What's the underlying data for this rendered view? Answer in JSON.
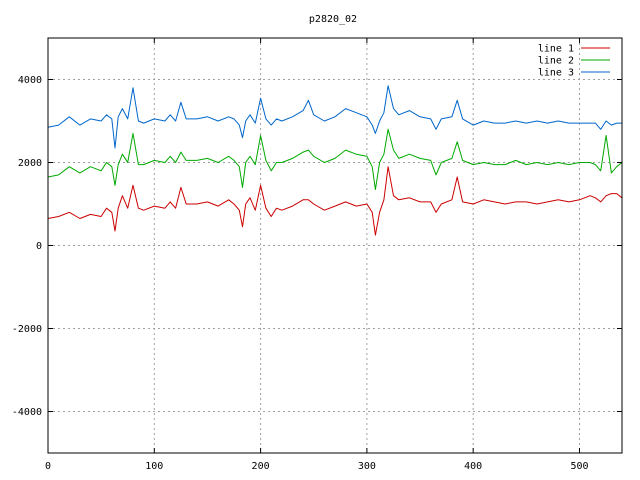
{
  "chart_data": {
    "type": "line",
    "title": "p2820_02",
    "xlabel": "",
    "ylabel": "",
    "xlim": [
      0,
      540
    ],
    "ylim": [
      -5000,
      5000
    ],
    "x_ticks": [
      0,
      100,
      200,
      300,
      400,
      500
    ],
    "y_ticks": [
      -4000,
      -2000,
      0,
      2000,
      4000
    ],
    "grid": true,
    "legend_position": "top-right",
    "series": [
      {
        "name": "line 1",
        "color": "#cc0000",
        "x": [
          0,
          10,
          20,
          30,
          40,
          50,
          55,
          60,
          63,
          66,
          70,
          75,
          80,
          85,
          90,
          100,
          110,
          115,
          120,
          125,
          130,
          140,
          150,
          160,
          170,
          175,
          180,
          183,
          186,
          190,
          195,
          200,
          205,
          210,
          215,
          220,
          230,
          240,
          245,
          250,
          260,
          270,
          280,
          290,
          300,
          305,
          308,
          312,
          316,
          320,
          325,
          330,
          340,
          350,
          360,
          365,
          370,
          380,
          385,
          390,
          400,
          410,
          420,
          430,
          440,
          450,
          460,
          470,
          480,
          490,
          500,
          510,
          515,
          520,
          525,
          530,
          535,
          540
        ],
        "values": [
          650,
          700,
          800,
          650,
          750,
          700,
          900,
          800,
          350,
          900,
          1200,
          900,
          1450,
          900,
          850,
          950,
          900,
          1050,
          900,
          1400,
          1000,
          1000,
          1050,
          950,
          1100,
          1000,
          850,
          450,
          1000,
          1150,
          850,
          1450,
          900,
          700,
          900,
          850,
          950,
          1100,
          1100,
          1000,
          850,
          950,
          1050,
          950,
          1000,
          800,
          250,
          800,
          1100,
          1900,
          1200,
          1100,
          1150,
          1050,
          1050,
          800,
          1000,
          1100,
          1650,
          1050,
          1000,
          1100,
          1050,
          1000,
          1050,
          1050,
          1000,
          1050,
          1100,
          1050,
          1100,
          1200,
          1150,
          1050,
          1200,
          1250,
          1250,
          1150
        ]
      },
      {
        "name": "line 2",
        "color": "#00aa00",
        "x": [
          0,
          10,
          20,
          30,
          40,
          50,
          55,
          60,
          63,
          66,
          70,
          75,
          80,
          85,
          90,
          100,
          110,
          115,
          120,
          125,
          130,
          140,
          150,
          160,
          170,
          175,
          180,
          183,
          186,
          190,
          195,
          200,
          205,
          210,
          215,
          220,
          230,
          240,
          245,
          250,
          260,
          270,
          280,
          290,
          300,
          305,
          308,
          312,
          316,
          320,
          325,
          330,
          340,
          350,
          360,
          365,
          370,
          380,
          385,
          390,
          400,
          410,
          420,
          430,
          440,
          450,
          460,
          470,
          480,
          490,
          500,
          510,
          515,
          520,
          525,
          530,
          535,
          540
        ],
        "values": [
          1650,
          1700,
          1900,
          1750,
          1900,
          1800,
          2000,
          1900,
          1450,
          1950,
          2200,
          2000,
          2700,
          1950,
          1950,
          2050,
          2000,
          2150,
          2000,
          2250,
          2050,
          2050,
          2100,
          2000,
          2150,
          2050,
          1900,
          1400,
          2000,
          2150,
          1950,
          2650,
          2050,
          1800,
          2000,
          2000,
          2100,
          2250,
          2300,
          2150,
          2000,
          2100,
          2300,
          2200,
          2150,
          1900,
          1350,
          2000,
          2200,
          2800,
          2300,
          2100,
          2200,
          2100,
          2050,
          1700,
          2000,
          2100,
          2500,
          2050,
          1950,
          2000,
          1950,
          1950,
          2050,
          1950,
          2000,
          1950,
          2000,
          1950,
          2000,
          2000,
          1950,
          1800,
          2650,
          1750,
          1900,
          2000
        ]
      },
      {
        "name": "line 3",
        "color": "#0066cc",
        "x": [
          0,
          10,
          20,
          30,
          40,
          50,
          55,
          60,
          63,
          66,
          70,
          75,
          80,
          85,
          90,
          100,
          110,
          115,
          120,
          125,
          130,
          140,
          150,
          160,
          170,
          175,
          180,
          183,
          186,
          190,
          195,
          200,
          205,
          210,
          215,
          220,
          230,
          240,
          245,
          250,
          260,
          270,
          280,
          290,
          300,
          305,
          308,
          312,
          316,
          320,
          325,
          330,
          340,
          350,
          360,
          365,
          370,
          380,
          385,
          390,
          400,
          410,
          420,
          430,
          440,
          450,
          460,
          470,
          480,
          490,
          500,
          510,
          515,
          520,
          525,
          530,
          535,
          540
        ],
        "values": [
          2850,
          2900,
          3100,
          2900,
          3050,
          3000,
          3150,
          3050,
          2350,
          3100,
          3300,
          3050,
          3800,
          3000,
          2950,
          3050,
          3000,
          3150,
          3000,
          3450,
          3050,
          3050,
          3100,
          3000,
          3100,
          3050,
          2900,
          2600,
          3000,
          3150,
          2950,
          3550,
          3050,
          2900,
          3050,
          3000,
          3100,
          3250,
          3500,
          3150,
          3000,
          3100,
          3300,
          3200,
          3100,
          2900,
          2700,
          3000,
          3200,
          3850,
          3300,
          3150,
          3250,
          3100,
          3050,
          2800,
          3050,
          3100,
          3500,
          3050,
          2900,
          3000,
          2950,
          2950,
          3000,
          2950,
          3000,
          2950,
          3000,
          2950,
          2950,
          2950,
          2950,
          2800,
          3000,
          2900,
          2950,
          2950
        ]
      }
    ]
  }
}
